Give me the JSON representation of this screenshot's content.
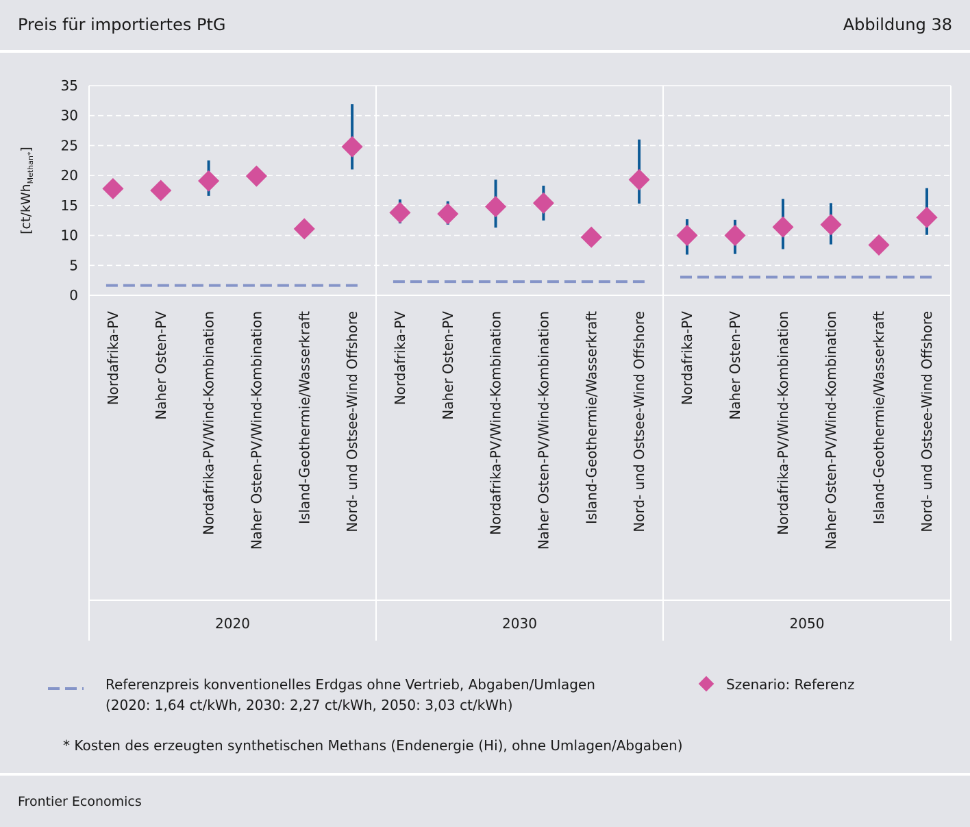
{
  "header": {
    "title": "Preis für importiertes PtG",
    "figure": "Abbildung 38"
  },
  "footer": {
    "source": "Frontier Economics"
  },
  "legend": {
    "reference_line_label": "Referenzpreis konventionelles Erdgas ohne Vertrieb, Abgaben/Umlagen",
    "reference_line_values": "(2020: 1,64 ct/kWh,  2030: 2,27 ct/kWh, 2050: 3,03 ct/kWh)",
    "scenario_label": "Szenario: Referenz"
  },
  "footnote": "* Kosten des erzeugten synthetischen Methans (Endenergie (Hi), ohne Umlagen/Abgaben)",
  "chart_data": {
    "type": "scatter",
    "ylabel_main": "[ct/kWh",
    "ylabel_sub": "Methan*",
    "ylabel_close": "]",
    "ylim": [
      0,
      35
    ],
    "yticks": [
      0,
      5,
      10,
      15,
      20,
      25,
      30,
      35
    ],
    "grid": true,
    "colors": {
      "marker": "#d3509b",
      "range": "#0d5a96",
      "reference": "#8594c8",
      "grid": "#ffffff"
    },
    "groups": [
      {
        "year": "2020",
        "reference_price": 1.64,
        "categories": [
          "Nordafrika-PV",
          "Naher Osten-PV",
          "Nordafrika-PV/Wind-Kombination",
          "Naher Osten-PV/Wind-Kombination",
          "Island-Geothermie/Wasserkraft",
          "Nord- und Ostsee-Wind Offshore"
        ],
        "values": [
          17.8,
          17.5,
          19.1,
          19.9,
          11.1,
          24.8
        ],
        "low": [
          16.5,
          16.7,
          16.6,
          18.3,
          11.1,
          21.0
        ],
        "high": [
          19.3,
          18.9,
          22.5,
          21.3,
          11.1,
          31.9
        ]
      },
      {
        "year": "2030",
        "reference_price": 2.27,
        "categories": [
          "Nordafrika-PV",
          "Naher Osten-PV",
          "Nordafrika-PV/Wind-Kombination",
          "Naher Osten-PV/Wind-Kombination",
          "Island-Geothermie/Wasserkraft",
          "Nord- und Ostsee-Wind Offshore"
        ],
        "values": [
          13.8,
          13.6,
          14.8,
          15.4,
          9.7,
          19.3
        ],
        "low": [
          12.0,
          11.8,
          11.3,
          12.5,
          9.7,
          15.3
        ],
        "high": [
          16.0,
          15.7,
          19.3,
          18.3,
          9.7,
          26.0
        ]
      },
      {
        "year": "2050",
        "reference_price": 3.03,
        "categories": [
          "Nordafrika-PV",
          "Naher Osten-PV",
          "Nordafrika-PV/Wind-Kombination",
          "Naher Osten-PV/Wind-Kombination",
          "Island-Geothermie/Wasserkraft",
          "Nord- und Ostsee-Wind Offshore"
        ],
        "values": [
          10.0,
          10.0,
          11.4,
          11.8,
          8.4,
          13.0
        ],
        "low": [
          6.8,
          6.9,
          7.7,
          8.5,
          8.4,
          10.1
        ],
        "high": [
          12.7,
          12.6,
          16.1,
          15.4,
          8.4,
          17.9
        ]
      }
    ]
  }
}
